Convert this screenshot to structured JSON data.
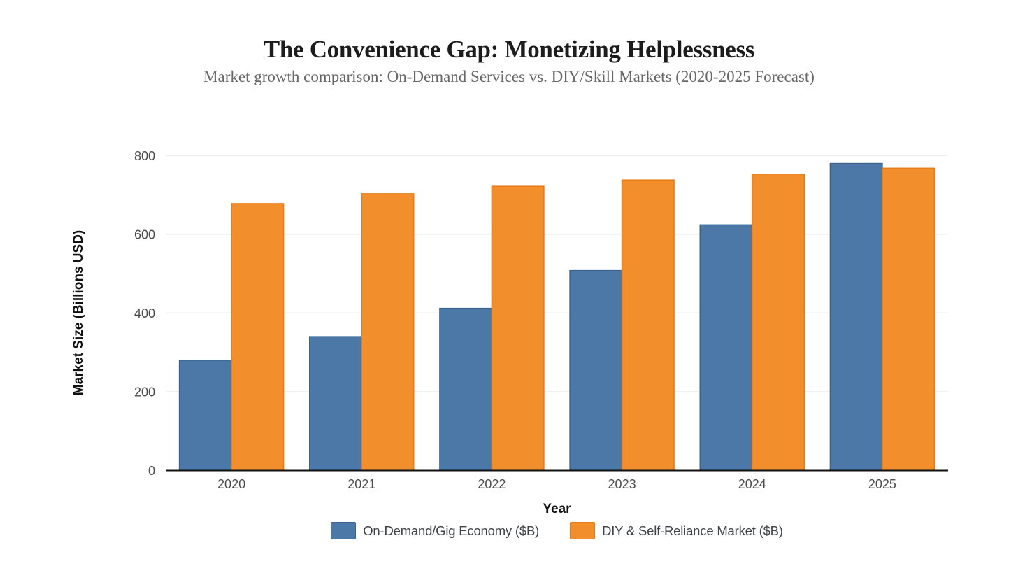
{
  "chart_data": {
    "type": "bar",
    "title": "The Convenience Gap: Monetizing Helplessness",
    "subtitle": "Market growth comparison: On-Demand Services vs. DIY/Skill Markets (2020-2025 Forecast)",
    "xlabel": "Year",
    "ylabel": "Market Size (Billions USD)",
    "categories": [
      "2020",
      "2021",
      "2022",
      "2023",
      "2024",
      "2025"
    ],
    "series": [
      {
        "name": "On-Demand/Gig Economy ($B)",
        "color": "#4c78a8",
        "stroke": "#3a648f",
        "values": [
          280,
          340,
          412,
          508,
          624,
          780
        ]
      },
      {
        "name": "DIY & Self-Reliance Market ($B)",
        "color": "#f28e2c",
        "stroke": "#e47d18",
        "values": [
          678,
          703,
          722,
          738,
          753,
          768
        ]
      }
    ],
    "ylim": [
      0,
      800
    ],
    "yticks": [
      0,
      200,
      400,
      600,
      800
    ],
    "grid": "horizontal",
    "legend_position": "bottom"
  },
  "colors": {
    "background": "#ffffff",
    "gridline": "#e8e8e8",
    "axis_line": "#111111",
    "tick_label": "#4d4d4d",
    "title_text": "#1c1c1c",
    "subtitle_text": "#686868",
    "legend_text": "#3f4248"
  }
}
